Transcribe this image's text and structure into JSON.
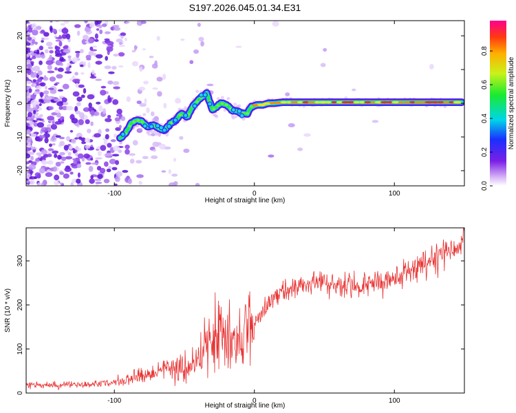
{
  "title": "S197.2026.045.01.34.E31",
  "chart_data": [
    {
      "type": "heatmap",
      "xlabel": "Height of straight line (km)",
      "ylabel": "Frequency (Hz)",
      "xlim": [
        -163,
        150
      ],
      "ylim": [
        -24.5,
        24.5
      ],
      "xticks": [
        -100,
        0,
        100
      ],
      "yticks": [
        -20,
        -10,
        0,
        10,
        20
      ],
      "colorbar": {
        "label": "Normalized spectral amplitude",
        "range": [
          0,
          0.98
        ],
        "ticks": [
          0.0,
          0.2,
          0.4,
          0.6,
          0.8
        ]
      },
      "ridge": {
        "description_points_x": [
          -96,
          -92,
          -88,
          -84,
          -80,
          -76,
          -72,
          -68,
          -64,
          -60,
          -56,
          -52,
          -48,
          -44,
          -40,
          -37,
          -34,
          -30,
          -27,
          -24,
          -20,
          -16,
          -12,
          -8,
          -5,
          -2,
          2,
          6,
          10,
          14,
          20,
          30,
          50,
          80,
          110,
          148
        ],
        "description_points_y": [
          -10.5,
          -9,
          -6,
          -5,
          -5.5,
          -7,
          -6.5,
          -7.5,
          -8,
          -6,
          -5,
          -3,
          -4,
          -1,
          1,
          2,
          3,
          -2,
          -1,
          0,
          -0.5,
          -2,
          -2.5,
          -3,
          -3,
          -1,
          -0.5,
          -0.5,
          0,
          0,
          0.3,
          0.3,
          0.3,
          0.3,
          0.3,
          0.3
        ]
      }
    },
    {
      "type": "line",
      "xlabel": "Height of straight line (km)",
      "ylabel": "SNR (10 * v/v)",
      "xlim": [
        -163,
        150
      ],
      "ylim": [
        0,
        375
      ],
      "xticks": [
        -100,
        0,
        100
      ],
      "yticks": [
        0,
        100,
        200,
        300
      ],
      "series": [
        {
          "name": "SNR",
          "color": "#e83030",
          "x": [
            -163,
            -150,
            -140,
            -130,
            -120,
            -110,
            -100,
            -90,
            -80,
            -70,
            -60,
            -50,
            -45,
            -40,
            -35,
            -30,
            -25,
            -20,
            -15,
            -10,
            -5,
            0,
            5,
            10,
            15,
            20,
            25,
            30,
            40,
            50,
            60,
            70,
            80,
            90,
            100,
            110,
            120,
            130,
            140,
            150
          ],
          "values": [
            18,
            17,
            18,
            18,
            19,
            22,
            25,
            32,
            40,
            50,
            60,
            55,
            60,
            70,
            90,
            120,
            140,
            110,
            115,
            125,
            140,
            165,
            185,
            200,
            215,
            228,
            235,
            240,
            248,
            252,
            242,
            240,
            245,
            252,
            262,
            278,
            295,
            305,
            318,
            340
          ]
        }
      ]
    }
  ]
}
